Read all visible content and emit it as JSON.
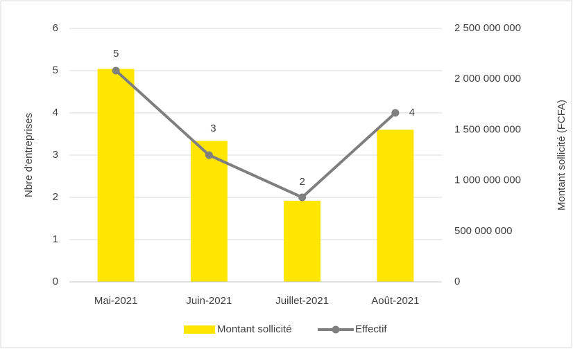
{
  "chart_data": {
    "type": "combo",
    "categories": [
      "Mai-2021",
      "Juin-2021",
      "Juillet-2021",
      "Août-2021"
    ],
    "series": [
      {
        "name": "Montant sollicité",
        "type": "bar",
        "axis": "y2",
        "color": "#ffe600",
        "values": [
          2100000000,
          1390000000,
          800000000,
          1500000000
        ]
      },
      {
        "name": "Effectif",
        "type": "line",
        "axis": "y",
        "color": "#7f7f7f",
        "values": [
          5,
          3,
          2,
          4
        ]
      }
    ],
    "ylabel": "Nbre d'entreprises",
    "y2label": "Montant sollicité (FCFA)",
    "ylim": [
      0,
      6
    ],
    "yticks": [
      0,
      1,
      2,
      3,
      4,
      5,
      6
    ],
    "y2lim": [
      0,
      2500000000
    ],
    "y2ticks": [
      0,
      {
        "value": 500000000,
        "label": "500 000 000"
      },
      {
        "value": 1000000000,
        "label": "1 000 000 000"
      },
      {
        "value": 1500000000,
        "label": "1 500 000 000"
      },
      {
        "value": 2000000000,
        "label": "2 000 000 000"
      },
      {
        "value": 2500000000,
        "label": "2 500 000 000"
      }
    ],
    "grid": true,
    "legend": "bottom"
  }
}
